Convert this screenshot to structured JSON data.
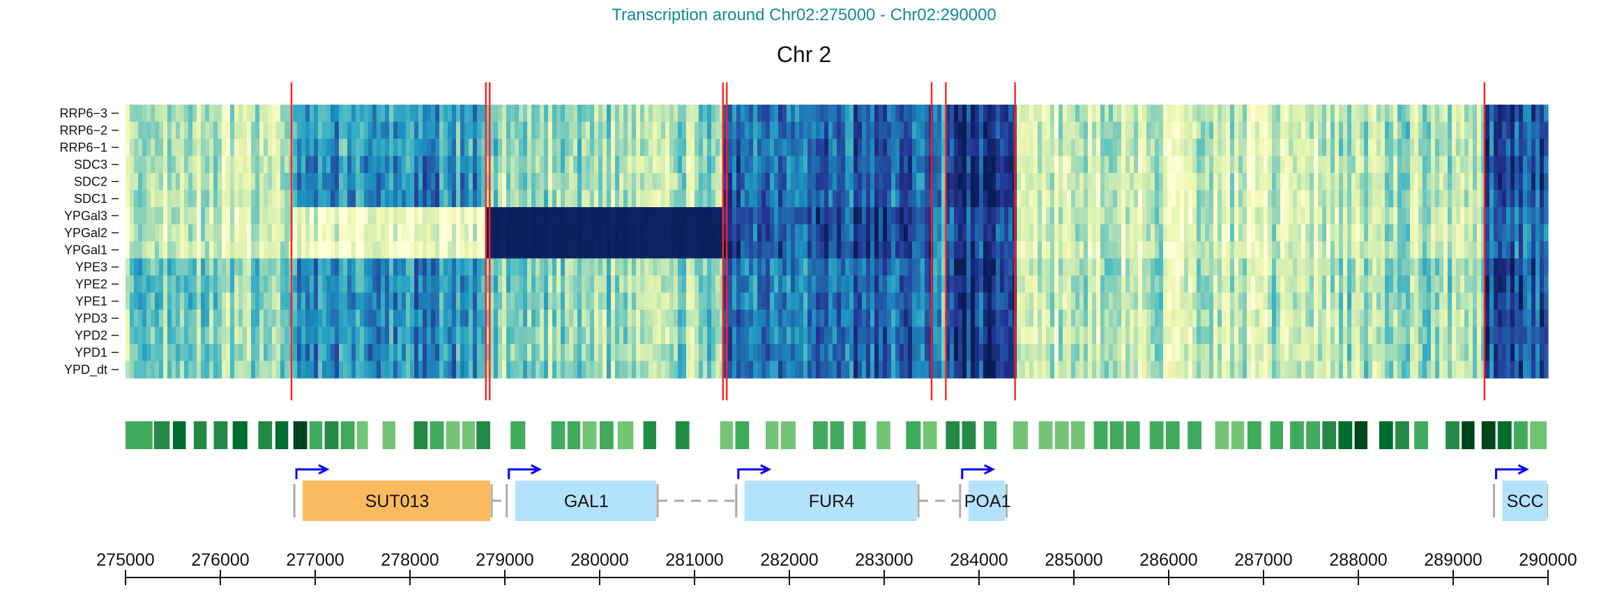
{
  "page_title": "Transcription around Chr02:275000 - Chr02:290000",
  "chart_data": {
    "type": "heatmap",
    "title": "Chr 2",
    "xlabel": "",
    "ylabel": "",
    "xlim": [
      275000,
      290000
    ],
    "rows": [
      "RRP6−3",
      "RRP6−2",
      "RRP6−1",
      "SDC3",
      "SDC2",
      "SDC1",
      "YPGal3",
      "YPGal2",
      "YPGal1",
      "YPE3",
      "YPE2",
      "YPE1",
      "YPD3",
      "YPD2",
      "YPD1",
      "YPD_dt"
    ],
    "colorscale": [
      "#ffffd9",
      "#edf8b1",
      "#c7e9b4",
      "#7fcdbb",
      "#41b6c4",
      "#1d91c0",
      "#225ea8",
      "#253494",
      "#081d58"
    ],
    "segment_color": "#ff2222",
    "segment_boundaries": [
      276750,
      278800,
      278840,
      281300,
      281340,
      283500,
      283650,
      284380,
      289330
    ],
    "region_intensity": [
      {
        "start": 275000,
        "end": 276750,
        "groups": {
          "rrp6": 0.22,
          "sdc": 0.22,
          "gal": 0.18,
          "ype": 0.38,
          "ypd": 0.34
        }
      },
      {
        "start": 276750,
        "end": 278800,
        "groups": {
          "rrp6": 0.55,
          "sdc": 0.62,
          "gal": 0.08,
          "ype": 0.6,
          "ypd": 0.6
        }
      },
      {
        "start": 278800,
        "end": 281300,
        "groups": {
          "rrp6": 0.32,
          "sdc": 0.3,
          "gal": 0.98,
          "ype": 0.33,
          "ypd": 0.33
        }
      },
      {
        "start": 281300,
        "end": 283500,
        "groups": {
          "rrp6": 0.72,
          "sdc": 0.74,
          "gal": 0.82,
          "ype": 0.7,
          "ypd": 0.72
        }
      },
      {
        "start": 283500,
        "end": 283650,
        "groups": {
          "rrp6": 0.62,
          "sdc": 0.62,
          "gal": 0.5,
          "ype": 0.55,
          "ypd": 0.55
        }
      },
      {
        "start": 283650,
        "end": 284380,
        "groups": {
          "rrp6": 0.85,
          "sdc": 0.9,
          "gal": 0.8,
          "ype": 0.85,
          "ypd": 0.86
        }
      },
      {
        "start": 284380,
        "end": 287800,
        "groups": {
          "rrp6": 0.22,
          "sdc": 0.2,
          "gal": 0.2,
          "ype": 0.25,
          "ypd": 0.24
        }
      },
      {
        "start": 287800,
        "end": 289330,
        "groups": {
          "rrp6": 0.3,
          "sdc": 0.3,
          "gal": 0.26,
          "ype": 0.33,
          "ypd": 0.32
        }
      },
      {
        "start": 289330,
        "end": 290000,
        "groups": {
          "rrp6": 0.8,
          "sdc": 0.82,
          "gal": 0.72,
          "ype": 0.82,
          "ypd": 0.82
        }
      }
    ],
    "segments_track": {
      "colors": [
        "#00441b",
        "#006d2c",
        "#238b45",
        "#41ab5d",
        "#74c476"
      ],
      "blocks": [
        {
          "start": 275000,
          "end": 275300,
          "shade": 3
        },
        {
          "start": 275300,
          "end": 275480,
          "shade": 2
        },
        {
          "start": 275500,
          "end": 275650,
          "shade": 1
        },
        {
          "start": 275720,
          "end": 275870,
          "shade": 2
        },
        {
          "start": 275930,
          "end": 276090,
          "shade": 2
        },
        {
          "start": 276130,
          "end": 276300,
          "shade": 1
        },
        {
          "start": 276400,
          "end": 276560,
          "shade": 2
        },
        {
          "start": 276580,
          "end": 276730,
          "shade": 1
        },
        {
          "start": 276770,
          "end": 276930,
          "shade": 0
        },
        {
          "start": 276940,
          "end": 277090,
          "shade": 3
        },
        {
          "start": 277100,
          "end": 277260,
          "shade": 2
        },
        {
          "start": 277270,
          "end": 277430,
          "shade": 3
        },
        {
          "start": 277440,
          "end": 277570,
          "shade": 4
        },
        {
          "start": 277710,
          "end": 277860,
          "shade": 4
        },
        {
          "start": 278040,
          "end": 278200,
          "shade": 2
        },
        {
          "start": 278210,
          "end": 278370,
          "shade": 3
        },
        {
          "start": 278380,
          "end": 278540,
          "shade": 4
        },
        {
          "start": 278550,
          "end": 278700,
          "shade": 4
        },
        {
          "start": 278700,
          "end": 278860,
          "shade": 2
        },
        {
          "start": 279060,
          "end": 279230,
          "shade": 3
        },
        {
          "start": 279490,
          "end": 279650,
          "shade": 3
        },
        {
          "start": 279660,
          "end": 279810,
          "shade": 3
        },
        {
          "start": 279820,
          "end": 279980,
          "shade": 4
        },
        {
          "start": 280000,
          "end": 280160,
          "shade": 3
        },
        {
          "start": 280190,
          "end": 280370,
          "shade": 4
        },
        {
          "start": 280460,
          "end": 280610,
          "shade": 2
        },
        {
          "start": 280800,
          "end": 280960,
          "shade": 2
        },
        {
          "start": 281270,
          "end": 281420,
          "shade": 4
        },
        {
          "start": 281430,
          "end": 281590,
          "shade": 3
        },
        {
          "start": 281750,
          "end": 281900,
          "shade": 4
        },
        {
          "start": 281910,
          "end": 282080,
          "shade": 4
        },
        {
          "start": 282250,
          "end": 282420,
          "shade": 3
        },
        {
          "start": 282430,
          "end": 282590,
          "shade": 3
        },
        {
          "start": 282670,
          "end": 282820,
          "shade": 3
        },
        {
          "start": 282920,
          "end": 283080,
          "shade": 4
        },
        {
          "start": 283230,
          "end": 283400,
          "shade": 3
        },
        {
          "start": 283410,
          "end": 283570,
          "shade": 4
        },
        {
          "start": 283650,
          "end": 283810,
          "shade": 2
        },
        {
          "start": 283820,
          "end": 283980,
          "shade": 2
        },
        {
          "start": 284050,
          "end": 284200,
          "shade": 3
        },
        {
          "start": 284360,
          "end": 284530,
          "shade": 4
        },
        {
          "start": 284630,
          "end": 284790,
          "shade": 4
        },
        {
          "start": 284800,
          "end": 284960,
          "shade": 4
        },
        {
          "start": 284970,
          "end": 285130,
          "shade": 4
        },
        {
          "start": 285210,
          "end": 285370,
          "shade": 3
        },
        {
          "start": 285380,
          "end": 285540,
          "shade": 3
        },
        {
          "start": 285550,
          "end": 285710,
          "shade": 3
        },
        {
          "start": 285800,
          "end": 285960,
          "shade": 3
        },
        {
          "start": 285970,
          "end": 286130,
          "shade": 3
        },
        {
          "start": 286200,
          "end": 286360,
          "shade": 3
        },
        {
          "start": 286490,
          "end": 286650,
          "shade": 4
        },
        {
          "start": 286660,
          "end": 286810,
          "shade": 4
        },
        {
          "start": 286830,
          "end": 286990,
          "shade": 3
        },
        {
          "start": 287070,
          "end": 287220,
          "shade": 3
        },
        {
          "start": 287280,
          "end": 287440,
          "shade": 3
        },
        {
          "start": 287450,
          "end": 287610,
          "shade": 3
        },
        {
          "start": 287620,
          "end": 287780,
          "shade": 2
        },
        {
          "start": 287790,
          "end": 287950,
          "shade": 1
        },
        {
          "start": 287960,
          "end": 288110,
          "shade": 0
        },
        {
          "start": 288220,
          "end": 288380,
          "shade": 1
        },
        {
          "start": 288390,
          "end": 288550,
          "shade": 2
        },
        {
          "start": 288590,
          "end": 288750,
          "shade": 3
        },
        {
          "start": 288920,
          "end": 289080,
          "shade": 2
        },
        {
          "start": 289090,
          "end": 289240,
          "shade": 0
        },
        {
          "start": 289300,
          "end": 289460,
          "shade": 0
        },
        {
          "start": 289470,
          "end": 289630,
          "shade": 1
        },
        {
          "start": 289640,
          "end": 289800,
          "shade": 3
        },
        {
          "start": 289810,
          "end": 290000,
          "shade": 4
        }
      ]
    },
    "genes": [
      {
        "name": "SUT013",
        "start": 276780,
        "end": 278860,
        "strand": "+",
        "color": "#fbb960"
      },
      {
        "name": "GAL1",
        "start": 279020,
        "end": 280610,
        "strand": "+",
        "color": "#b3e2fc"
      },
      {
        "name": "FUR4",
        "start": 281440,
        "end": 283360,
        "strand": "+",
        "color": "#b3e2fc"
      },
      {
        "name": "POA1",
        "start": 283800,
        "end": 284290,
        "strand": "+",
        "color": "#b3e2fc"
      },
      {
        "name": "SCC",
        "start": 289430,
        "end": 290000,
        "strand": "+",
        "color": "#b3e2fc"
      }
    ],
    "gene_link_color": "#aaaaaa",
    "arrow_color": "#0000ff",
    "ticks": [
      "275000",
      "276000",
      "277000",
      "278000",
      "279000",
      "280000",
      "281000",
      "282000",
      "283000",
      "284000",
      "285000",
      "286000",
      "287000",
      "288000",
      "289000",
      "290000"
    ],
    "grid": false,
    "legend": "none"
  }
}
